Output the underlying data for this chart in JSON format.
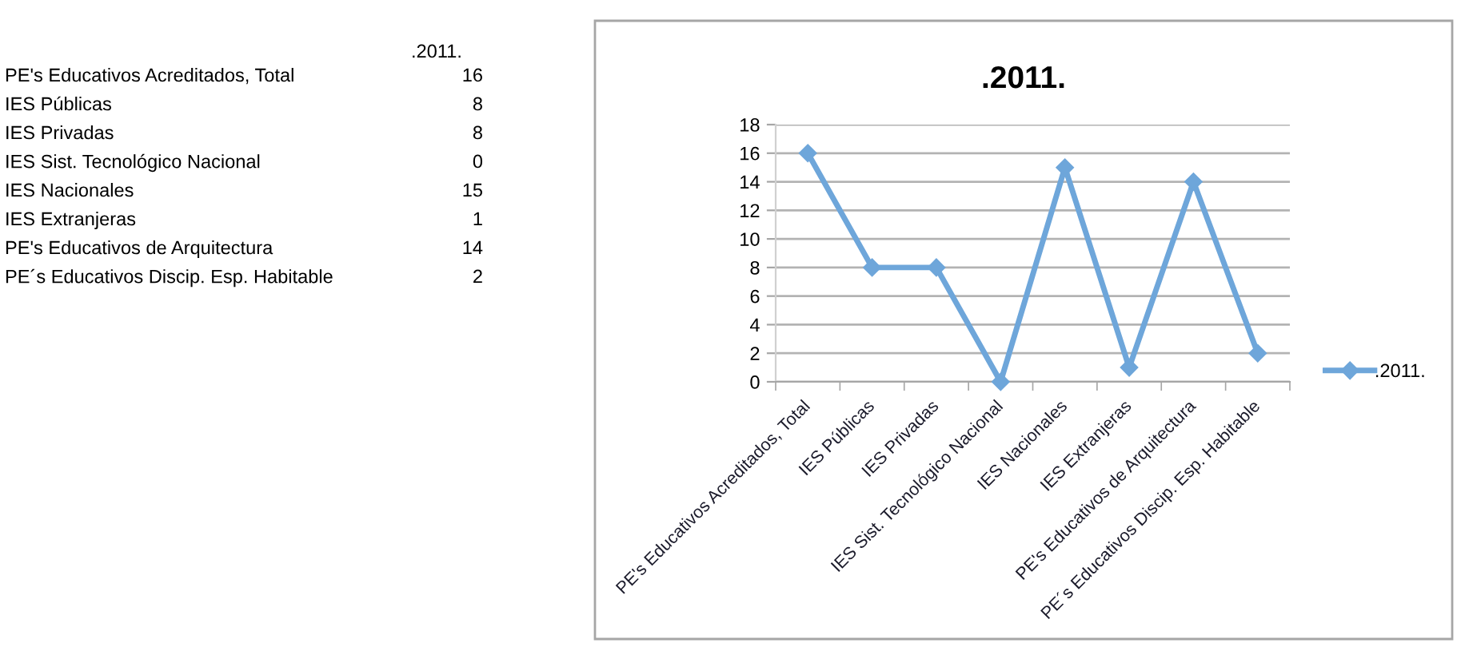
{
  "chart_data": [
    {
      "type": "other",
      "categories": [
        "PE's Educativos Acreditados, Total",
        "IES Públicas",
        "IES Privadas",
        "IES Sist. Tecnológico Nacional",
        "IES Nacionales",
        "IES Extranjeras",
        "PE's Educativos de Arquitectura",
        "PE´s Educativos Discip. Esp. Habitable"
      ],
      "series": [
        {
          "name": ".2011.",
          "values": [
            16,
            8,
            8,
            0,
            15,
            1,
            14,
            2
          ]
        }
      ],
      "data_labels": true
    },
    {
      "type": "line",
      "title": ".2011.",
      "categories": [
        "PE's Educativos Acreditados, Total",
        "IES Públicas",
        "IES Privadas",
        "IES Sist. Tecnológico Nacional",
        "IES Nacionales",
        "IES Extranjeras",
        "PE's Educativos de Arquitectura",
        "PE´s Educativos Discip. Esp. Habitable"
      ],
      "series": [
        {
          "name": ".2011.",
          "color": "#6ea6da",
          "values": [
            16,
            8,
            8,
            0,
            15,
            1,
            14,
            2
          ]
        }
      ],
      "ylim": [
        0,
        18
      ],
      "yticks": [
        0,
        2,
        4,
        6,
        8,
        10,
        12,
        14,
        16,
        18
      ],
      "grid": "y",
      "legend": "right",
      "marker": "diamond",
      "line_style": "solid"
    }
  ]
}
